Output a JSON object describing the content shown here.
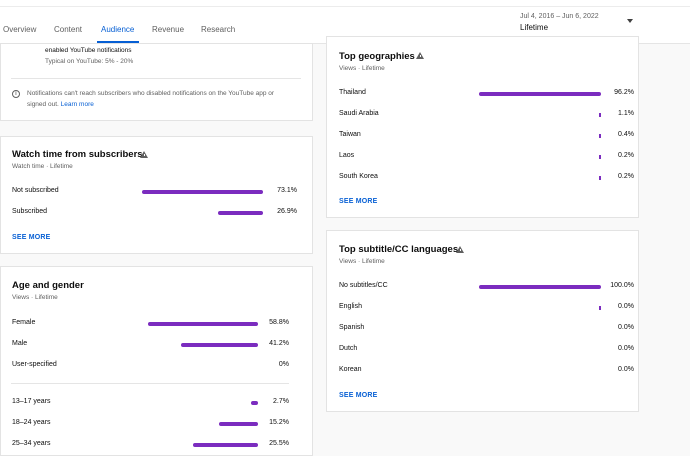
{
  "tabs": [
    {
      "label": "Overview"
    },
    {
      "label": "Content"
    },
    {
      "label": "Audience"
    },
    {
      "label": "Revenue"
    },
    {
      "label": "Research"
    }
  ],
  "date": {
    "range": "Jul 4, 2016 – Jun 6, 2022",
    "selected": "Lifetime"
  },
  "notifications": {
    "line1": "enabled YouTube notifications",
    "typical": "Typical on YouTube: 5% - 20%",
    "info_text": "Notifications can't reach subscribers who disabled notifications on the YouTube app or",
    "info_text2": "signed out.",
    "learn_more": "Learn more"
  },
  "watch_time": {
    "title": "Watch time from subscribers",
    "subtitle": "Watch time · Lifetime",
    "rows": [
      {
        "label": "Not subscribed",
        "value": 73.1,
        "pct": "73.1%"
      },
      {
        "label": "Subscribed",
        "value": 26.9,
        "pct": "26.9%"
      }
    ],
    "see_more": "SEE MORE"
  },
  "age_gender": {
    "title": "Age and gender",
    "subtitle": "Views · Lifetime",
    "gender_rows": [
      {
        "label": "Female",
        "value": 58.8,
        "pct": "58.8%"
      },
      {
        "label": "Male",
        "value": 41.2,
        "pct": "41.2%"
      },
      {
        "label": "User-specified",
        "value": 0,
        "pct": "0%"
      }
    ],
    "age_rows": [
      {
        "label": "13–17 years",
        "value": 2.7,
        "pct": "2.7%"
      },
      {
        "label": "18–24 years",
        "value": 15.2,
        "pct": "15.2%"
      },
      {
        "label": "25–34 years",
        "value": 25.5,
        "pct": "25.5%"
      }
    ]
  },
  "geographies": {
    "title": "Top geographies",
    "subtitle": "Views · Lifetime",
    "rows": [
      {
        "label": "Thailand",
        "value": 96.2,
        "pct": "96.2%"
      },
      {
        "label": "Saudi Arabia",
        "value": 1.1,
        "pct": "1.1%"
      },
      {
        "label": "Taiwan",
        "value": 0.4,
        "pct": "0.4%"
      },
      {
        "label": "Laos",
        "value": 0.2,
        "pct": "0.2%"
      },
      {
        "label": "South Korea",
        "value": 0.2,
        "pct": "0.2%"
      }
    ],
    "see_more": "SEE MORE"
  },
  "subtitles": {
    "title": "Top subtitle/CC languages",
    "subtitle": "Views · Lifetime",
    "rows": [
      {
        "label": "No subtitles/CC",
        "value": 100.0,
        "pct": "100.0%"
      },
      {
        "label": "English",
        "value": 0.0,
        "pct": "0.0%",
        "tick": true
      },
      {
        "label": "Spanish",
        "value": 0.0,
        "pct": "0.0%"
      },
      {
        "label": "Dutch",
        "value": 0.0,
        "pct": "0.0%"
      },
      {
        "label": "Korean",
        "value": 0.0,
        "pct": "0.0%"
      }
    ],
    "see_more": "SEE MORE"
  },
  "colors": {
    "accent": "#7b2cbf",
    "link": "#065fd4"
  }
}
